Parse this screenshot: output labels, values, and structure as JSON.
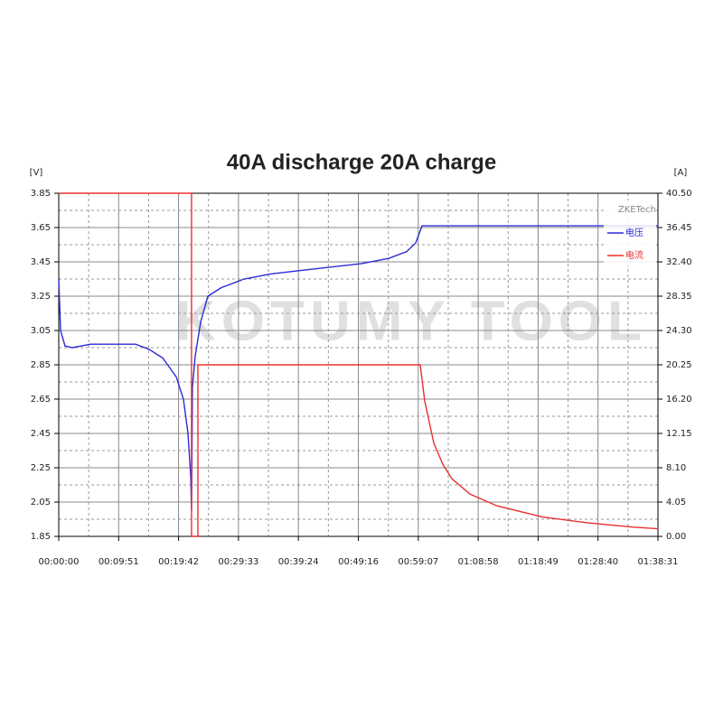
{
  "chart_data": {
    "type": "line",
    "title": "40A discharge 20A charge",
    "y_label": "[V]",
    "y2_label": "[A]",
    "watermark": "KOTUMY TOOL",
    "brand": "ZKETech",
    "xlim": [
      0,
      5911
    ],
    "xticks": [
      {
        "value": 0,
        "label": "00:00:00"
      },
      {
        "value": 591,
        "label": "00:09:51"
      },
      {
        "value": 1182,
        "label": "00:19:42"
      },
      {
        "value": 1773,
        "label": "00:29:33"
      },
      {
        "value": 2364,
        "label": "00:39:24"
      },
      {
        "value": 2956,
        "label": "00:49:16"
      },
      {
        "value": 3547,
        "label": "00:59:07"
      },
      {
        "value": 4138,
        "label": "01:08:58"
      },
      {
        "value": 4729,
        "label": "01:18:49"
      },
      {
        "value": 5320,
        "label": "01:28:40"
      },
      {
        "value": 5911,
        "label": "01:38:31"
      }
    ],
    "ylim": [
      1.85,
      3.85
    ],
    "yticks": [
      1.85,
      2.05,
      2.25,
      2.45,
      2.65,
      2.85,
      3.05,
      3.25,
      3.45,
      3.65,
      3.85
    ],
    "y2lim": [
      0,
      40.5
    ],
    "y2ticks": [
      {
        "value": 0,
        "label": "0.00"
      },
      4.05,
      {
        "value": 8.1,
        "label": "8.10"
      },
      12.15,
      {
        "value": 16.2,
        "label": "16.20"
      },
      20.25,
      {
        "value": 24.3,
        "label": "24.30"
      },
      28.35,
      {
        "value": 32.4,
        "label": "32.40"
      },
      36.45,
      {
        "value": 40.5,
        "label": "40.50"
      }
    ],
    "grid": true,
    "series": [
      {
        "name": "电压",
        "color": "#2b2bd6",
        "x": [
          0,
          18,
          62,
          134,
          312,
          758,
          892,
          1025,
          1159,
          1230,
          1275,
          1302,
          1310,
          1319,
          1346,
          1400,
          1471,
          1605,
          1828,
          2095,
          2541,
          2987,
          3254,
          3432,
          3521,
          3584,
          5911
        ],
        "values": [
          3.35,
          3.05,
          2.96,
          2.95,
          2.97,
          2.97,
          2.94,
          2.89,
          2.78,
          2.65,
          2.45,
          2.2,
          2.0,
          2.72,
          2.9,
          3.1,
          3.25,
          3.3,
          3.35,
          3.38,
          3.41,
          3.44,
          3.47,
          3.51,
          3.56,
          3.66,
          3.66
        ]
      },
      {
        "name": "电流",
        "color": "#e83030",
        "axis": "y2",
        "x": [
          0,
          1310,
          1310,
          1373,
          1373,
          3566,
          3610,
          3700,
          3789,
          3878,
          4056,
          4324,
          4769,
          5215,
          5661,
          5911
        ],
        "values": [
          40.5,
          40.5,
          0,
          0,
          20.25,
          20.25,
          16,
          11,
          8.5,
          6.8,
          5,
          3.6,
          2.3,
          1.6,
          1.1,
          0.9
        ]
      }
    ]
  }
}
